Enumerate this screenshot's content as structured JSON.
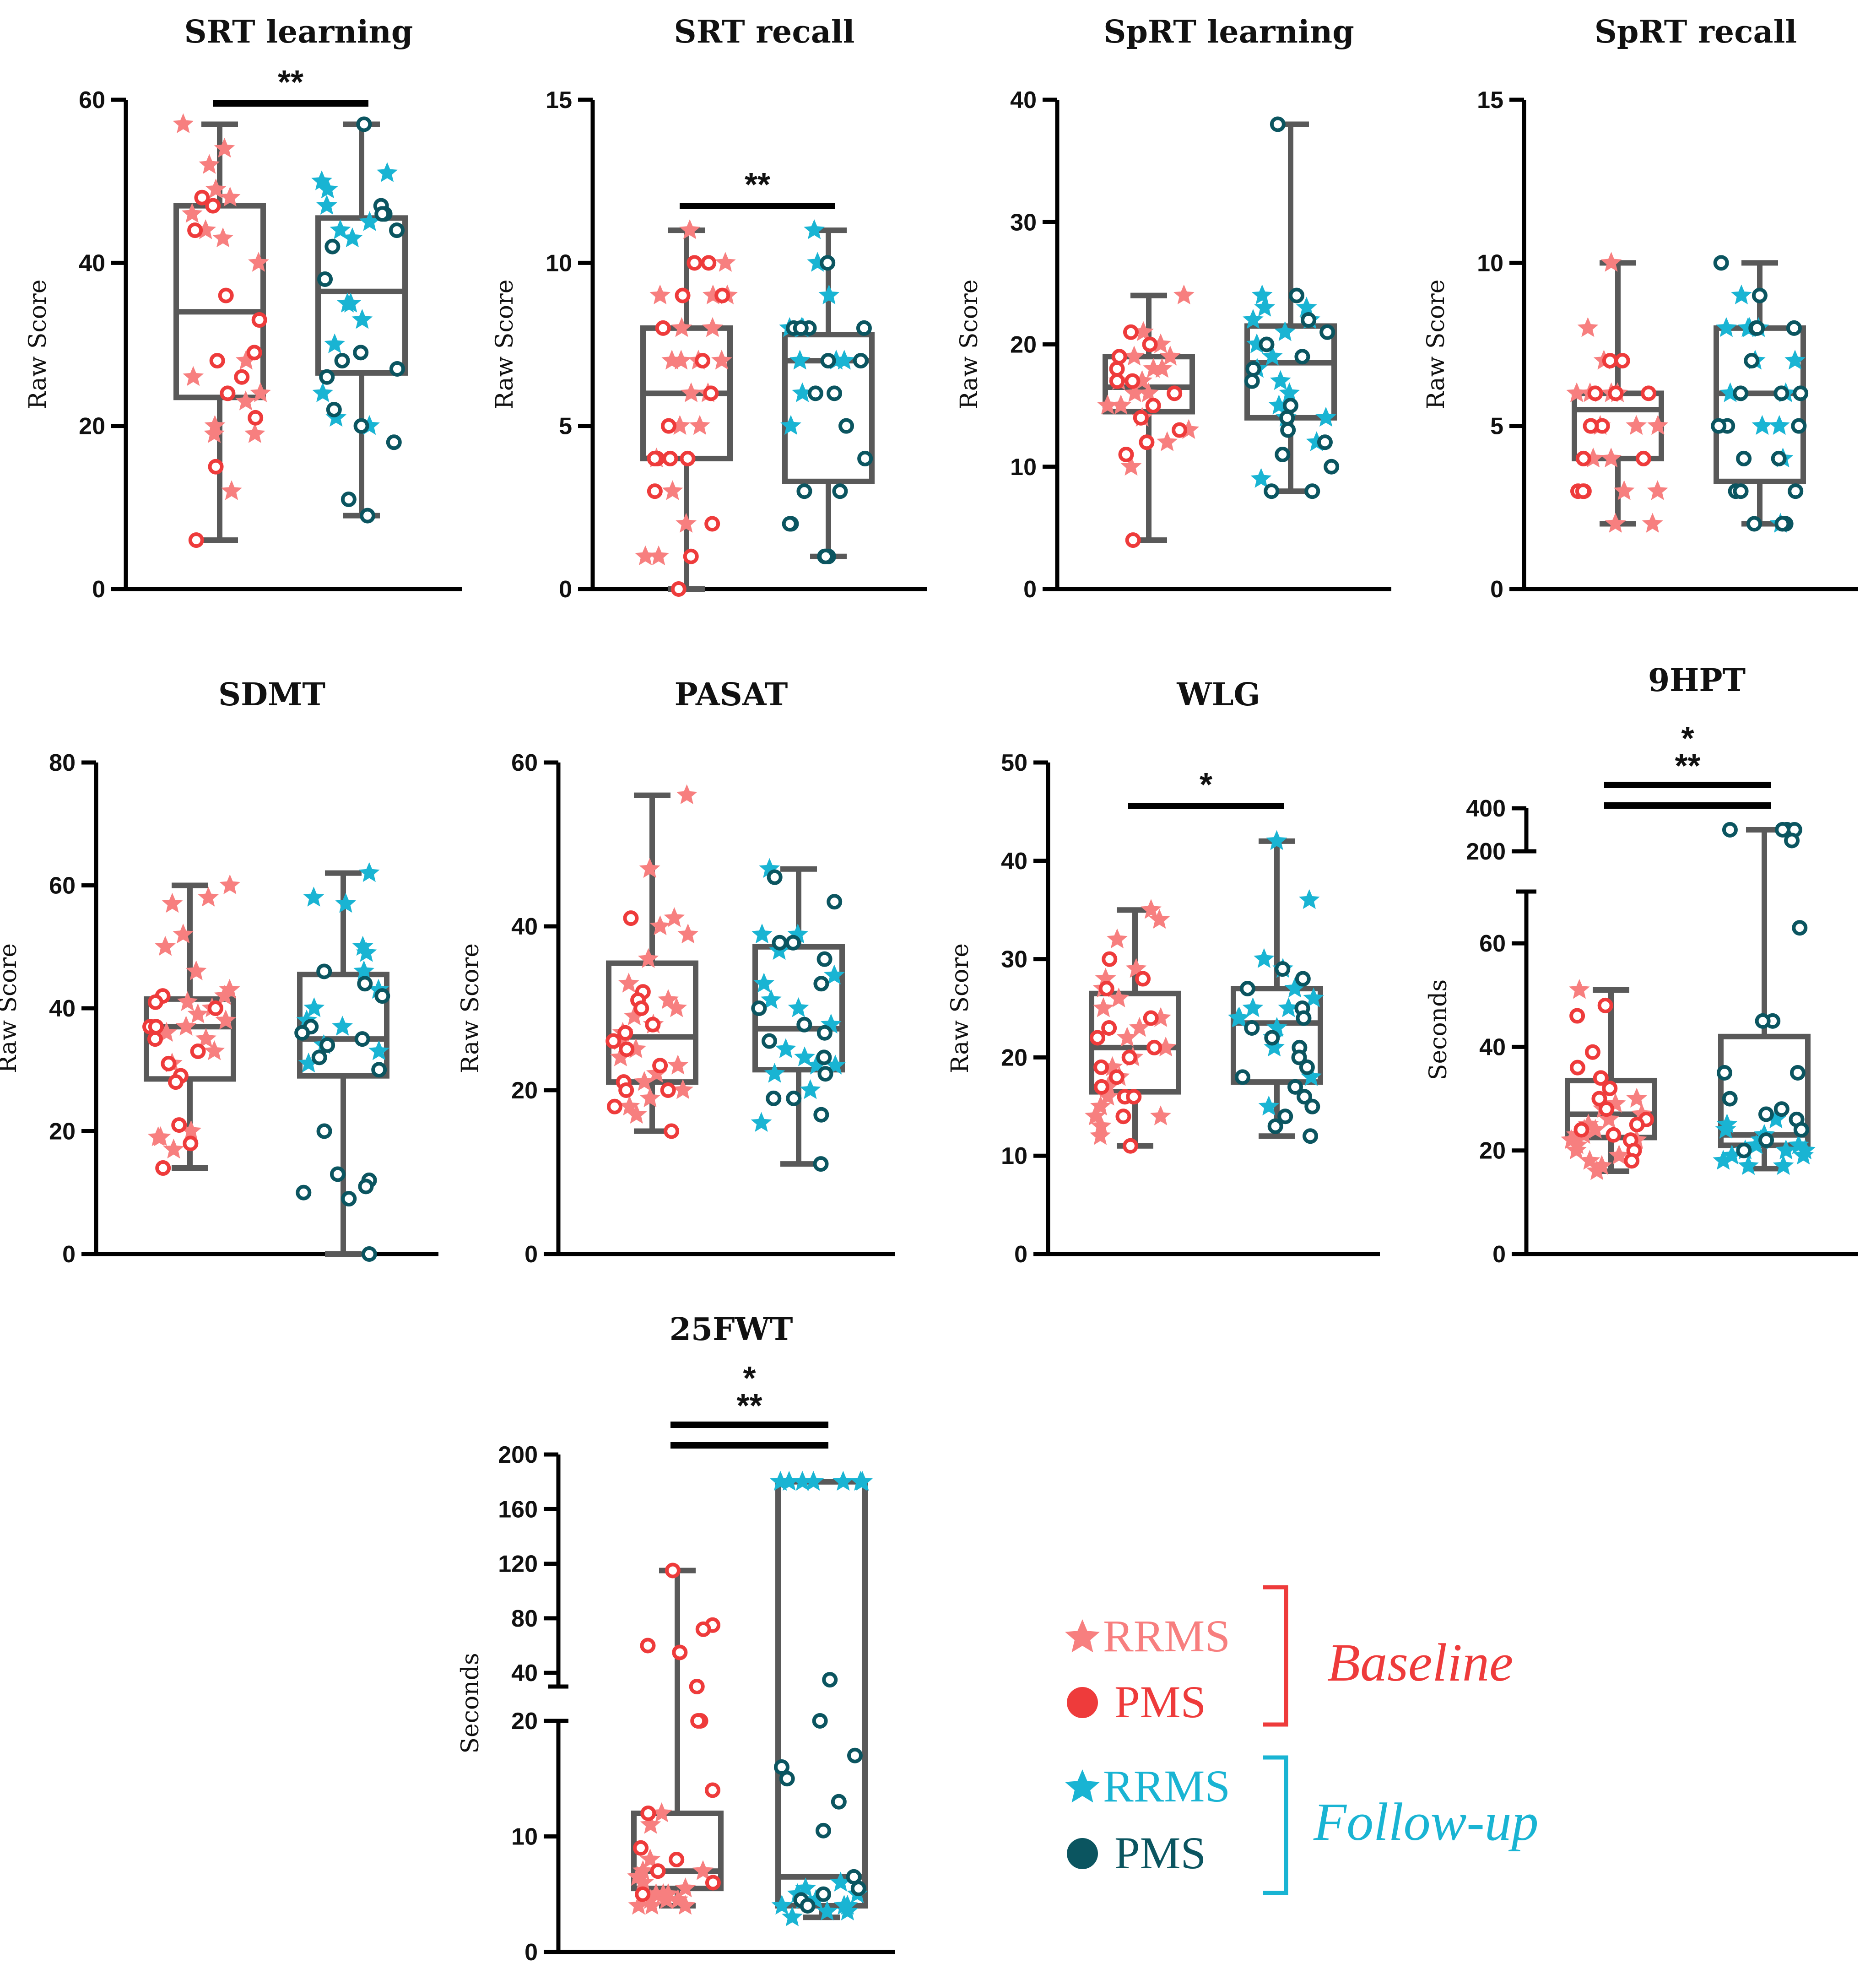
{
  "colors": {
    "baseline_rrms": "#F77F7F",
    "baseline_pms": "#EE3B3B",
    "followup_rrms": "#19B4D3",
    "followup_pms": "#0B5560",
    "box": "#595959",
    "axis": "#000000"
  },
  "legend": {
    "baseline_label": "Baseline",
    "followup_label": "Follow-up",
    "rrms_label": "RRMS",
    "pms_label": "PMS"
  },
  "chart_data": [
    {
      "type": "box",
      "title": "SRT learning",
      "ylabel": "Raw Score",
      "ylim": [
        0,
        60
      ],
      "yticks": [
        0,
        20,
        40,
        60
      ],
      "groups": [
        "Baseline",
        "Follow-up"
      ],
      "boxes": [
        {
          "group": "Baseline",
          "min": 6,
          "q1": 23.5,
          "median": 34,
          "q3": 47,
          "max": 57
        },
        {
          "group": "Follow-up",
          "min": 9,
          "q1": 26.5,
          "median": 36.5,
          "q3": 45.5,
          "max": 57
        }
      ],
      "points": {
        "baseline_rrms": [
          57,
          54,
          52,
          49,
          48,
          46,
          44,
          43,
          40,
          28,
          26,
          24,
          23,
          20,
          19,
          19,
          12
        ],
        "baseline_pms": [
          48,
          47,
          44,
          36,
          33,
          29,
          28,
          26,
          24,
          21,
          15,
          6
        ],
        "followup_rrms": [
          51,
          50,
          49,
          47,
          45,
          44,
          43,
          35,
          35,
          33,
          30,
          24,
          21,
          20
        ],
        "followup_pms": [
          57,
          47,
          46,
          46,
          44,
          42,
          38,
          29,
          28,
          27,
          26,
          22,
          20,
          18,
          11,
          9
        ]
      },
      "significance": [
        {
          "label": "**"
        }
      ]
    },
    {
      "type": "box",
      "title": "SRT recall",
      "ylabel": "Raw Score",
      "ylim": [
        0,
        15
      ],
      "yticks": [
        0,
        5,
        10,
        15
      ],
      "groups": [
        "Baseline",
        "Follow-up"
      ],
      "boxes": [
        {
          "group": "Baseline",
          "min": 0,
          "q1": 4,
          "median": 6,
          "q3": 8,
          "max": 11
        },
        {
          "group": "Follow-up",
          "min": 1,
          "q1": 3.3,
          "median": 7,
          "q3": 7.8,
          "max": 11
        }
      ],
      "points": {
        "baseline_rrms": [
          11,
          10,
          9,
          9,
          9,
          8,
          8,
          7,
          7,
          7,
          7,
          6,
          6,
          5,
          5,
          4,
          3,
          2,
          1,
          1
        ],
        "baseline_pms": [
          10,
          10,
          9,
          9,
          8,
          7,
          6,
          5,
          4,
          4,
          4,
          4,
          3,
          2,
          1,
          0
        ],
        "followup_rrms": [
          11,
          10,
          9,
          8,
          8,
          8,
          7,
          7,
          7,
          6,
          5
        ],
        "followup_pms": [
          10,
          8,
          8,
          8,
          8,
          7,
          7,
          6,
          6,
          5,
          4,
          3,
          3,
          2,
          2,
          1,
          1,
          1
        ]
      },
      "significance": [
        {
          "label": "**"
        }
      ]
    },
    {
      "type": "box",
      "title": "SpRT learning",
      "ylabel": "Raw Score",
      "ylim": [
        0,
        40
      ],
      "yticks": [
        0,
        10,
        20,
        30,
        40
      ],
      "groups": [
        "Baseline",
        "Follow-up"
      ],
      "boxes": [
        {
          "group": "Baseline",
          "min": 4,
          "q1": 14.5,
          "median": 16.5,
          "q3": 19,
          "max": 24
        },
        {
          "group": "Follow-up",
          "min": 8,
          "q1": 14,
          "median": 18.5,
          "q3": 21.5,
          "max": 38
        }
      ],
      "points": {
        "baseline_rrms": [
          24,
          21,
          20,
          19,
          19,
          18,
          18,
          17,
          17,
          16,
          16,
          15,
          15,
          14,
          13,
          12,
          10
        ],
        "baseline_pms": [
          21,
          20,
          19,
          18,
          17,
          17,
          16,
          15,
          14,
          13,
          12,
          11,
          4
        ],
        "followup_rrms": [
          24,
          23,
          23,
          22,
          22,
          21,
          20,
          19,
          18,
          17,
          16,
          15,
          14,
          14,
          12,
          9
        ],
        "followup_pms": [
          38,
          24,
          22,
          21,
          20,
          19,
          18,
          17,
          15,
          14,
          13,
          12,
          11,
          10,
          8,
          8
        ]
      },
      "significance": []
    },
    {
      "type": "box",
      "title": "SpRT recall",
      "ylabel": "Raw Score",
      "ylim": [
        0,
        15
      ],
      "yticks": [
        0,
        5,
        10,
        15
      ],
      "groups": [
        "Baseline",
        "Follow-up"
      ],
      "boxes": [
        {
          "group": "Baseline",
          "min": 2,
          "q1": 4,
          "median": 5.5,
          "q3": 6,
          "max": 10
        },
        {
          "group": "Follow-up",
          "min": 2,
          "q1": 3.3,
          "median": 6,
          "q3": 8,
          "max": 10
        }
      ],
      "points": {
        "baseline_rrms": [
          10,
          8,
          7,
          6,
          6,
          6,
          6,
          5,
          5,
          5,
          4,
          4,
          3,
          3,
          2,
          2
        ],
        "baseline_pms": [
          7,
          7,
          6,
          6,
          6,
          5,
          5,
          5,
          4,
          4,
          3,
          3,
          3
        ],
        "followup_rrms": [
          9,
          8,
          8,
          8,
          8,
          7,
          7,
          6,
          6,
          5,
          5,
          4,
          2
        ],
        "followup_pms": [
          10,
          9,
          8,
          8,
          8,
          7,
          6,
          6,
          6,
          5,
          5,
          5,
          4,
          4,
          3,
          3,
          3,
          2,
          2,
          2
        ]
      },
      "significance": []
    },
    {
      "type": "box",
      "title": "SDMT",
      "ylabel": "Raw Score",
      "ylim": [
        0,
        80
      ],
      "yticks": [
        0,
        20,
        40,
        60,
        80
      ],
      "groups": [
        "Baseline",
        "Follow-up"
      ],
      "boxes": [
        {
          "group": "Baseline",
          "min": 14,
          "q1": 28.5,
          "median": 37,
          "q3": 41.5,
          "max": 60
        },
        {
          "group": "Follow-up",
          "min": 0,
          "q1": 29,
          "median": 35,
          "q3": 45.5,
          "max": 62
        }
      ],
      "points": {
        "baseline_rrms": [
          60,
          58,
          57,
          52,
          50,
          46,
          43,
          42,
          41,
          40,
          39,
          38,
          37,
          36,
          35,
          33,
          31,
          20,
          19,
          19,
          17
        ],
        "baseline_pms": [
          42,
          41,
          40,
          37,
          37,
          35,
          33,
          31,
          29,
          28,
          21,
          18,
          14
        ],
        "followup_rrms": [
          62,
          58,
          57,
          50,
          49,
          46,
          43,
          40,
          38,
          37,
          34,
          33,
          31
        ],
        "followup_pms": [
          46,
          44,
          42,
          37,
          36,
          35,
          34,
          32,
          30,
          20,
          13,
          12,
          11,
          10,
          9,
          0
        ]
      },
      "significance": []
    },
    {
      "type": "box",
      "title": "PASAT",
      "ylabel": "Raw Score",
      "ylim": [
        0,
        60
      ],
      "yticks": [
        0,
        20,
        40,
        60
      ],
      "groups": [
        "Baseline",
        "Follow-up"
      ],
      "boxes": [
        {
          "group": "Baseline",
          "min": 15,
          "q1": 21,
          "median": 26.5,
          "q3": 35.5,
          "max": 56
        },
        {
          "group": "Follow-up",
          "min": 11,
          "q1": 22.5,
          "median": 27.5,
          "q3": 37.5,
          "max": 47
        }
      ],
      "points": {
        "baseline_rrms": [
          56,
          47,
          41,
          40,
          39,
          36,
          33,
          31,
          30,
          29,
          28,
          27,
          26,
          25,
          24,
          23,
          22,
          21,
          20,
          19,
          18,
          17
        ],
        "baseline_pms": [
          41,
          32,
          31,
          30,
          28,
          27,
          26,
          25,
          23,
          21,
          20,
          20,
          18,
          15
        ],
        "followup_rrms": [
          47,
          39,
          39,
          37,
          34,
          33,
          31,
          30,
          28,
          25,
          24,
          23,
          23,
          22,
          20,
          16
        ],
        "followup_pms": [
          46,
          43,
          38,
          38,
          36,
          33,
          30,
          28,
          27,
          26,
          24,
          22,
          19,
          19,
          17,
          11
        ]
      },
      "significance": []
    },
    {
      "type": "box",
      "title": "WLG",
      "ylabel": "Raw Score",
      "ylim": [
        0,
        50
      ],
      "yticks": [
        0,
        10,
        20,
        30,
        40,
        50
      ],
      "groups": [
        "Baseline",
        "Follow-up"
      ],
      "boxes": [
        {
          "group": "Baseline",
          "min": 11,
          "q1": 16.5,
          "median": 21,
          "q3": 26.5,
          "max": 35
        },
        {
          "group": "Follow-up",
          "min": 12,
          "q1": 17.5,
          "median": 23.5,
          "q3": 27,
          "max": 42
        }
      ],
      "points": {
        "baseline_rrms": [
          35,
          34,
          32,
          29,
          28,
          27,
          26,
          25,
          24,
          23,
          22,
          21,
          20,
          19,
          18,
          17,
          16,
          15,
          14,
          14,
          13,
          12
        ],
        "baseline_pms": [
          30,
          28,
          27,
          24,
          23,
          22,
          21,
          20,
          19,
          18,
          17,
          16,
          16,
          14,
          11
        ],
        "followup_rrms": [
          42,
          36,
          30,
          29,
          27,
          26,
          25,
          25,
          24,
          24,
          23,
          22,
          21,
          18,
          15
        ],
        "followup_pms": [
          29,
          28,
          27,
          25,
          24,
          23,
          22,
          21,
          20,
          19,
          18,
          17,
          16,
          15,
          14,
          13,
          12
        ]
      },
      "significance": [
        {
          "label": "*"
        }
      ]
    },
    {
      "type": "box",
      "title": "9HPT",
      "ylabel": "Seconds",
      "ylim": [
        0,
        400
      ],
      "axis_break": [
        70,
        200
      ],
      "yticks": [
        0,
        20,
        40,
        60,
        200,
        400
      ],
      "groups": [
        "Baseline",
        "Follow-up"
      ],
      "boxes": [
        {
          "group": "Baseline",
          "min": 16,
          "q1": 22.5,
          "median": 27,
          "q3": 33.5,
          "max": 51
        },
        {
          "group": "Follow-up",
          "min": 16.5,
          "q1": 21,
          "median": 23,
          "q3": 42,
          "max": 300
        }
      ],
      "points": {
        "baseline_rrms": [
          51,
          30,
          29,
          28,
          27,
          26,
          25,
          24,
          24,
          23,
          23,
          22,
          22,
          21,
          20,
          19,
          18,
          17,
          16
        ],
        "baseline_pms": [
          48,
          46,
          39,
          36,
          34,
          32,
          30,
          28,
          26,
          25,
          24,
          23,
          22,
          20,
          18
        ],
        "followup_rrms": [
          26,
          25,
          24,
          23,
          22,
          22,
          21,
          21,
          20,
          20,
          20,
          19,
          19,
          18,
          17,
          17
        ],
        "followup_pms": [
          300,
          300,
          300,
          300,
          300,
          250,
          63,
          45,
          45,
          35,
          35,
          30,
          28,
          27,
          26,
          24,
          22,
          20
        ]
      },
      "significance": [
        {
          "label": "*"
        },
        {
          "label": "**"
        }
      ]
    },
    {
      "type": "box",
      "title": "25FWT",
      "ylabel": "Seconds",
      "ylim": [
        0,
        200
      ],
      "axis_break": [
        20,
        30
      ],
      "yticks_lower": [
        0,
        10,
        20
      ],
      "yticks_upper": [
        40,
        80,
        120,
        160,
        200
      ],
      "groups": [
        "Baseline",
        "Follow-up"
      ],
      "boxes": [
        {
          "group": "Baseline",
          "min": 4,
          "q1": 5.5,
          "median": 7,
          "q3": 12,
          "max": 115
        },
        {
          "group": "Follow-up",
          "min": 3,
          "q1": 4,
          "median": 6.5,
          "q3": 180,
          "max": 180
        }
      ],
      "points": {
        "baseline_rrms": [
          12,
          11,
          8,
          7,
          7,
          6.5,
          6,
          6,
          5.5,
          5,
          5,
          5,
          4.5,
          4.5,
          4.5,
          4,
          4,
          4
        ],
        "baseline_pms": [
          115,
          75,
          72,
          60,
          55,
          30,
          28,
          25,
          14,
          12,
          9,
          8,
          7,
          6,
          5
        ],
        "followup_rrms": [
          180,
          180,
          180,
          180,
          180,
          180,
          180,
          6,
          5.5,
          5,
          5,
          4.5,
          4.5,
          4,
          4,
          4,
          3.5,
          3.5,
          3
        ],
        "followup_pms": [
          35,
          25,
          17,
          16,
          15,
          13,
          10.5,
          6.5,
          5.5,
          5,
          4.5,
          4
        ]
      },
      "significance": [
        {
          "label": "*"
        },
        {
          "label": "**"
        }
      ]
    }
  ]
}
